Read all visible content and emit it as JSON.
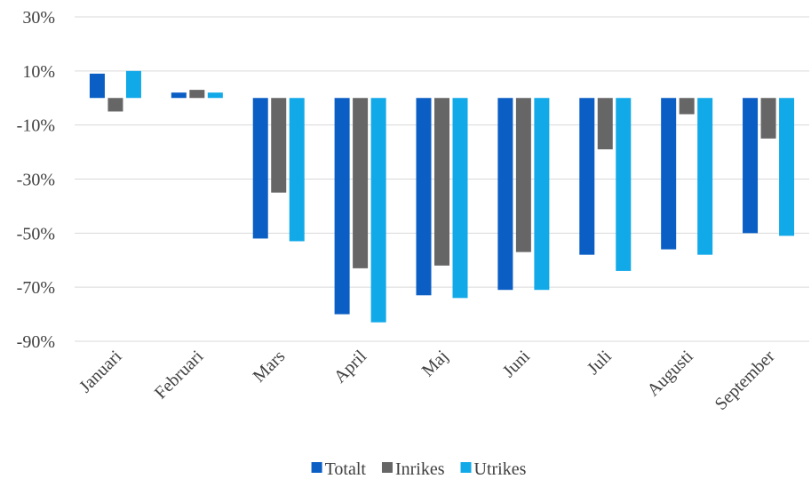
{
  "chart_data": {
    "type": "bar",
    "categories": [
      "Januari",
      "Februari",
      "Mars",
      "April",
      "Maj",
      "Juni",
      "Juli",
      "Augusti",
      "September"
    ],
    "series": [
      {
        "name": "Totalt",
        "color": "#0b5ec4",
        "values": [
          9,
          2,
          -52,
          -80,
          -73,
          -71,
          -58,
          -56,
          -50
        ]
      },
      {
        "name": "Inrikes",
        "color": "#666666",
        "values": [
          -5,
          3,
          -35,
          -63,
          -62,
          -57,
          -19,
          -6,
          -15
        ]
      },
      {
        "name": "Utrikes",
        "color": "#12a9e8",
        "values": [
          10,
          2,
          -53,
          -83,
          -74,
          -71,
          -64,
          -58,
          -51
        ]
      }
    ],
    "ylim": [
      -90,
      30
    ],
    "yticks": [
      {
        "value": -90,
        "label": "-90%"
      },
      {
        "value": -70,
        "label": "-70%"
      },
      {
        "value": -50,
        "label": "-50%"
      },
      {
        "value": -30,
        "label": "-30%"
      },
      {
        "value": -10,
        "label": "-10%"
      },
      {
        "value": 10,
        "label": "10%"
      },
      {
        "value": 30,
        "label": "30%"
      }
    ],
    "grid": true,
    "legend": "bottom"
  }
}
